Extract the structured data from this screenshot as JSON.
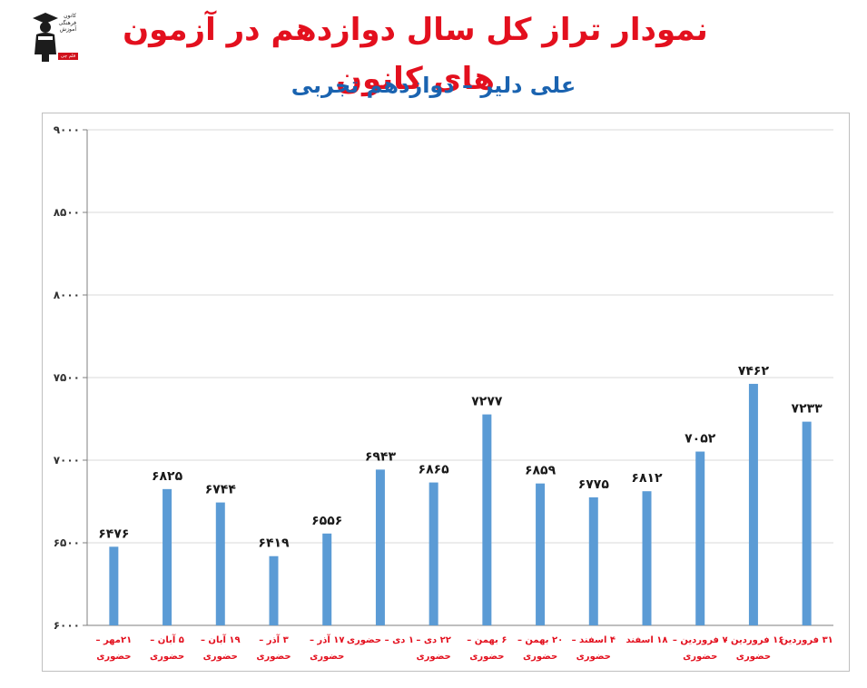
{
  "header": {
    "title": "نمودار تراز کل سال دوازدهم در آزمون های کانون",
    "subtitle": "علی دلیر – دوازدهم تجربی"
  },
  "logo": {
    "icon": "graduate-figure-icon",
    "lines": [
      "کانون",
      "فرهنگی",
      "آموزش"
    ],
    "badge": "قلم چی"
  },
  "colors": {
    "title": "#e3101e",
    "subtitle": "#1a63b0",
    "bar": "#5b9bd5",
    "category_label": "#e3101e",
    "grid": "#d9d9d9"
  },
  "chart_data": {
    "type": "bar",
    "ylim": [
      6000,
      9000
    ],
    "yticks": [
      6000,
      6500,
      7000,
      7500,
      8000,
      8500,
      9000
    ],
    "ytick_labels": [
      "۶۰۰۰",
      "۶۵۰۰",
      "۷۰۰۰",
      "۷۵۰۰",
      "۸۰۰۰",
      "۸۵۰۰",
      "۹۰۰۰"
    ],
    "grid": true,
    "categories": [
      [
        "۲۱مهر –",
        "حضوری"
      ],
      [
        "۵ آبان –",
        "حضوری"
      ],
      [
        "۱۹ آبان –",
        "حضوری"
      ],
      [
        "۳ آذر –",
        "حضوری"
      ],
      [
        "۱۷ آذر –",
        "حضوری"
      ],
      [
        "۱ دی – حضوری"
      ],
      [
        "۲۲ دی –",
        "حضوری"
      ],
      [
        "۶ بهمن –",
        "حضوری"
      ],
      [
        "۲۰ بهمن –",
        "حضوری"
      ],
      [
        "۴ اسفند –",
        "حضوری"
      ],
      [
        "۱۸ اسفند"
      ],
      [
        "۷ فروردین –",
        "حضوری"
      ],
      [
        "۱۶ فروردین –",
        "حضوری"
      ],
      [
        "۳۱ فروردین"
      ]
    ],
    "values": [
      6476,
      6825,
      6744,
      6419,
      6556,
      6943,
      6865,
      7277,
      6859,
      6775,
      6812,
      7052,
      7462,
      7233
    ],
    "value_labels": [
      "۶۴۷۶",
      "۶۸۲۵",
      "۶۷۴۴",
      "۶۴۱۹",
      "۶۵۵۶",
      "۶۹۴۳",
      "۶۸۶۵",
      "۷۲۷۷",
      "۶۸۵۹",
      "۶۷۷۵",
      "۶۸۱۲",
      "۷۰۵۲",
      "۷۴۶۲",
      "۷۲۳۳"
    ]
  }
}
